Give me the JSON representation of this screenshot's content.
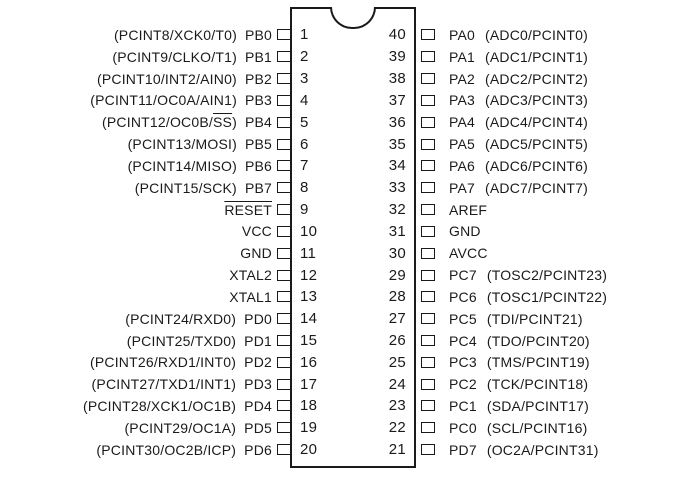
{
  "diagram": {
    "type": "ic-pinout",
    "colors": {
      "line": "#1a1a1a",
      "text": "#1a1a1a",
      "background": "#ffffff"
    },
    "left_pins": [
      {
        "num": "1",
        "func": [
          {
            "t": "(PCINT8/XCK0/T0)",
            "o": false
          }
        ],
        "port": [
          {
            "t": "PB0",
            "o": false
          }
        ]
      },
      {
        "num": "2",
        "func": [
          {
            "t": "(PCINT9/CLKO/T1)",
            "o": false
          }
        ],
        "port": [
          {
            "t": "PB1",
            "o": false
          }
        ]
      },
      {
        "num": "3",
        "func": [
          {
            "t": "(PCINT10/INT2/AIN0)",
            "o": false
          }
        ],
        "port": [
          {
            "t": "PB2",
            "o": false
          }
        ]
      },
      {
        "num": "4",
        "func": [
          {
            "t": "(PCINT11/OC0A/AIN1)",
            "o": false
          }
        ],
        "port": [
          {
            "t": "PB3",
            "o": false
          }
        ]
      },
      {
        "num": "5",
        "func": [
          {
            "t": "(PCINT12/OC0B/",
            "o": false
          },
          {
            "t": "SS",
            "o": true
          },
          {
            "t": ")",
            "o": false
          }
        ],
        "port": [
          {
            "t": "PB4",
            "o": false
          }
        ]
      },
      {
        "num": "6",
        "func": [
          {
            "t": "(PCINT13/MOSI)",
            "o": false
          }
        ],
        "port": [
          {
            "t": "PB5",
            "o": false
          }
        ]
      },
      {
        "num": "7",
        "func": [
          {
            "t": "(PCINT14/MISO)",
            "o": false
          }
        ],
        "port": [
          {
            "t": "PB6",
            "o": false
          }
        ]
      },
      {
        "num": "8",
        "func": [
          {
            "t": "(PCINT15/SCK)",
            "o": false
          }
        ],
        "port": [
          {
            "t": "PB7",
            "o": false
          }
        ]
      },
      {
        "num": "9",
        "func": [],
        "port": [
          {
            "t": "RESET",
            "o": true
          }
        ]
      },
      {
        "num": "10",
        "func": [],
        "port": [
          {
            "t": "VCC",
            "o": false
          }
        ]
      },
      {
        "num": "11",
        "func": [],
        "port": [
          {
            "t": "GND",
            "o": false
          }
        ]
      },
      {
        "num": "12",
        "func": [],
        "port": [
          {
            "t": "XTAL2",
            "o": false
          }
        ]
      },
      {
        "num": "13",
        "func": [],
        "port": [
          {
            "t": "XTAL1",
            "o": false
          }
        ]
      },
      {
        "num": "14",
        "func": [
          {
            "t": "(PCINT24/RXD0)",
            "o": false
          }
        ],
        "port": [
          {
            "t": "PD0",
            "o": false
          }
        ]
      },
      {
        "num": "15",
        "func": [
          {
            "t": "(PCINT25/TXD0)",
            "o": false
          }
        ],
        "port": [
          {
            "t": "PD1",
            "o": false
          }
        ]
      },
      {
        "num": "16",
        "func": [
          {
            "t": "(PCINT26/RXD1/INT0)",
            "o": false
          }
        ],
        "port": [
          {
            "t": "PD2",
            "o": false
          }
        ]
      },
      {
        "num": "17",
        "func": [
          {
            "t": "(PCINT27/TXD1/INT1)",
            "o": false
          }
        ],
        "port": [
          {
            "t": "PD3",
            "o": false
          }
        ]
      },
      {
        "num": "18",
        "func": [
          {
            "t": "(PCINT28/XCK1/OC1B)",
            "o": false
          }
        ],
        "port": [
          {
            "t": "PD4",
            "o": false
          }
        ]
      },
      {
        "num": "19",
        "func": [
          {
            "t": "(PCINT29/OC1A)",
            "o": false
          }
        ],
        "port": [
          {
            "t": "PD5",
            "o": false
          }
        ]
      },
      {
        "num": "20",
        "func": [
          {
            "t": "(PCINT30/OC2B/ICP)",
            "o": false
          }
        ],
        "port": [
          {
            "t": "PD6",
            "o": false
          }
        ]
      }
    ],
    "right_pins": [
      {
        "num": "40",
        "port": [
          {
            "t": "PA0",
            "o": false
          }
        ],
        "func": [
          {
            "t": "(ADC0/PCINT0)",
            "o": false
          }
        ]
      },
      {
        "num": "39",
        "port": [
          {
            "t": "PA1",
            "o": false
          }
        ],
        "func": [
          {
            "t": "(ADC1/PCINT1)",
            "o": false
          }
        ]
      },
      {
        "num": "38",
        "port": [
          {
            "t": "PA2",
            "o": false
          }
        ],
        "func": [
          {
            "t": "(ADC2/PCINT2)",
            "o": false
          }
        ]
      },
      {
        "num": "37",
        "port": [
          {
            "t": "PA3",
            "o": false
          }
        ],
        "func": [
          {
            "t": "(ADC3/PCINT3)",
            "o": false
          }
        ]
      },
      {
        "num": "36",
        "port": [
          {
            "t": "PA4",
            "o": false
          }
        ],
        "func": [
          {
            "t": "(ADC4/PCINT4)",
            "o": false
          }
        ]
      },
      {
        "num": "35",
        "port": [
          {
            "t": "PA5",
            "o": false
          }
        ],
        "func": [
          {
            "t": "(ADC5/PCINT5)",
            "o": false
          }
        ]
      },
      {
        "num": "34",
        "port": [
          {
            "t": "PA6",
            "o": false
          }
        ],
        "func": [
          {
            "t": "(ADC6/PCINT6)",
            "o": false
          }
        ]
      },
      {
        "num": "33",
        "port": [
          {
            "t": "PA7",
            "o": false
          }
        ],
        "func": [
          {
            "t": "(ADC7/PCINT7)",
            "o": false
          }
        ]
      },
      {
        "num": "32",
        "port": [
          {
            "t": "AREF",
            "o": false
          }
        ],
        "func": []
      },
      {
        "num": "31",
        "port": [
          {
            "t": "GND",
            "o": false
          }
        ],
        "func": []
      },
      {
        "num": "30",
        "port": [
          {
            "t": "AVCC",
            "o": false
          }
        ],
        "func": []
      },
      {
        "num": "29",
        "port": [
          {
            "t": "PC7",
            "o": false
          }
        ],
        "func": [
          {
            "t": "(TOSC2/PCINT23)",
            "o": false
          }
        ]
      },
      {
        "num": "28",
        "port": [
          {
            "t": "PC6",
            "o": false
          }
        ],
        "func": [
          {
            "t": "(TOSC1/PCINT22)",
            "o": false
          }
        ]
      },
      {
        "num": "27",
        "port": [
          {
            "t": "PC5",
            "o": false
          }
        ],
        "func": [
          {
            "t": "(TDI/PCINT21)",
            "o": false
          }
        ]
      },
      {
        "num": "26",
        "port": [
          {
            "t": "PC4",
            "o": false
          }
        ],
        "func": [
          {
            "t": "(TDO/PCINT20)",
            "o": false
          }
        ]
      },
      {
        "num": "25",
        "port": [
          {
            "t": "PC3",
            "o": false
          }
        ],
        "func": [
          {
            "t": "(TMS/PCINT19)",
            "o": false
          }
        ]
      },
      {
        "num": "24",
        "port": [
          {
            "t": "PC2",
            "o": false
          }
        ],
        "func": [
          {
            "t": "(TCK/PCINT18)",
            "o": false
          }
        ]
      },
      {
        "num": "23",
        "port": [
          {
            "t": "PC1",
            "o": false
          }
        ],
        "func": [
          {
            "t": "(SDA/PCINT17)",
            "o": false
          }
        ]
      },
      {
        "num": "22",
        "port": [
          {
            "t": "PC0",
            "o": false
          }
        ],
        "func": [
          {
            "t": "(SCL/PCINT16)",
            "o": false
          }
        ]
      },
      {
        "num": "21",
        "port": [
          {
            "t": "PD7",
            "o": false
          }
        ],
        "func": [
          {
            "t": "(OC2A/PCINT31)",
            "o": false
          }
        ]
      }
    ]
  }
}
